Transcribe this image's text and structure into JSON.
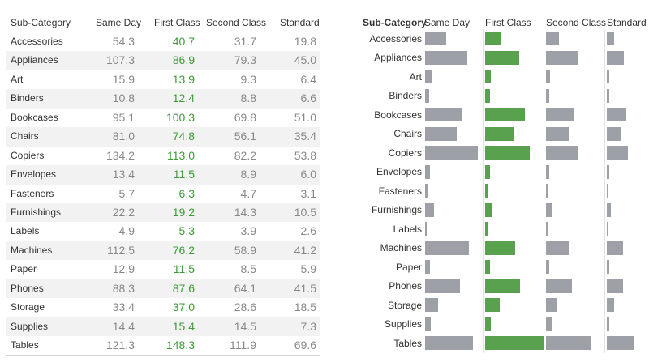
{
  "chart_data": {
    "type": "table",
    "columns": [
      "Sub-Category",
      "Same Day",
      "First Class",
      "Second Class",
      "Standard"
    ],
    "highlight_column": "First Class",
    "colors": {
      "highlight": "#3d9b35",
      "number": "#888888",
      "bar_highlight": "#59a14f",
      "bar": "#9da0a6"
    },
    "rows": [
      {
        "name": "Accessories",
        "values": [
          54.3,
          40.7,
          31.7,
          19.8
        ],
        "display": [
          "54.3",
          "40.7",
          "31.7",
          "19.8"
        ]
      },
      {
        "name": "Appliances",
        "values": [
          107.3,
          86.9,
          79.3,
          45.0
        ],
        "display": [
          "107.3",
          "86.9",
          "79.3",
          "45.0"
        ]
      },
      {
        "name": "Art",
        "values": [
          15.9,
          13.9,
          9.3,
          6.4
        ],
        "display": [
          "15.9",
          "13.9",
          "9.3",
          "6.4"
        ]
      },
      {
        "name": "Binders",
        "values": [
          10.8,
          12.4,
          8.8,
          6.6
        ],
        "display": [
          "10.8",
          "12.4",
          "8.8",
          "6.6"
        ]
      },
      {
        "name": "Bookcases",
        "values": [
          95.1,
          100.3,
          69.8,
          51.0
        ],
        "display": [
          "95.1",
          "100.3",
          "69.8",
          "51.0"
        ]
      },
      {
        "name": "Chairs",
        "values": [
          81.0,
          74.8,
          56.1,
          35.4
        ],
        "display": [
          "81.0",
          "74.8",
          "56.1",
          "35.4"
        ]
      },
      {
        "name": "Copiers",
        "values": [
          134.2,
          113.0,
          82.2,
          53.8
        ],
        "display": [
          "134.2",
          "113.0",
          "82.2",
          "53.8"
        ]
      },
      {
        "name": "Envelopes",
        "values": [
          13.4,
          11.5,
          8.9,
          6.0
        ],
        "display": [
          "13.4",
          "11.5",
          "8.9",
          "6.0"
        ]
      },
      {
        "name": "Fasteners",
        "values": [
          5.7,
          6.3,
          4.7,
          3.1
        ],
        "display": [
          "5.7",
          "6.3",
          "4.7",
          "3.1"
        ]
      },
      {
        "name": "Furnishings",
        "values": [
          22.2,
          19.2,
          14.3,
          10.5
        ],
        "display": [
          "22.2",
          "19.2",
          "14.3",
          "10.5"
        ]
      },
      {
        "name": "Labels",
        "values": [
          4.9,
          5.3,
          3.9,
          2.6
        ],
        "display": [
          "4.9",
          "5.3",
          "3.9",
          "2.6"
        ]
      },
      {
        "name": "Machines",
        "values": [
          112.5,
          76.2,
          58.9,
          41.2
        ],
        "display": [
          "112.5",
          "76.2",
          "58.9",
          "41.2"
        ]
      },
      {
        "name": "Paper",
        "values": [
          12.9,
          11.5,
          8.5,
          5.9
        ],
        "display": [
          "12.9",
          "11.5",
          "8.5",
          "5.9"
        ]
      },
      {
        "name": "Phones",
        "values": [
          88.3,
          87.6,
          64.1,
          41.5
        ],
        "display": [
          "88.3",
          "87.6",
          "64.1",
          "41.5"
        ]
      },
      {
        "name": "Storage",
        "values": [
          33.4,
          37.0,
          28.6,
          18.5
        ],
        "display": [
          "33.4",
          "37.0",
          "28.6",
          "18.5"
        ]
      },
      {
        "name": "Supplies",
        "values": [
          14.4,
          15.4,
          14.5,
          7.3
        ],
        "display": [
          "14.4",
          "15.4",
          "14.5",
          "7.3"
        ]
      },
      {
        "name": "Tables",
        "values": [
          121.3,
          148.3,
          111.9,
          69.6
        ],
        "display": [
          "121.3",
          "148.3",
          "111.9",
          "69.6"
        ]
      }
    ]
  }
}
